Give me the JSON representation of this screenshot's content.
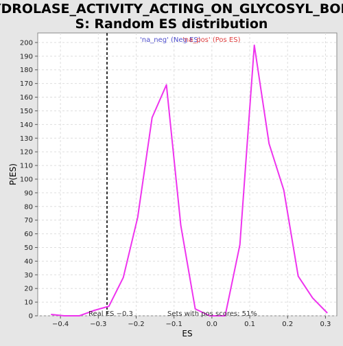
{
  "chart_data": {
    "type": "line",
    "title_lines": [
      "HYDROLASE_ACTIVITY_ACTING_ON_GLYCOSYL_BOND",
      "S: Random ES distribution"
    ],
    "xlabel": "ES",
    "ylabel": "P(ES)",
    "xlim": [
      -0.46,
      0.33
    ],
    "ylim": [
      0,
      207
    ],
    "x_ticks": [
      -0.4,
      -0.3,
      -0.2,
      -0.1,
      0.0,
      0.1,
      0.2,
      0.3
    ],
    "x_tick_labels": [
      "−0.4",
      "−0.3",
      "−0.2",
      "−0.1",
      "0.0",
      "0.1",
      "0.2",
      "0.3"
    ],
    "y_ticks": [
      0,
      10,
      20,
      30,
      40,
      50,
      60,
      70,
      80,
      90,
      100,
      110,
      120,
      130,
      140,
      150,
      160,
      170,
      180,
      190,
      200
    ],
    "grid": true,
    "legend": [
      {
        "label": "'na_neg' (Neg ES)",
        "color": "#4d4dcc"
      },
      {
        "label": "'na_pos' (Pos ES)",
        "color": "#e04040"
      }
    ],
    "series": [
      {
        "color": "#ee33ee",
        "x": [
          -0.425,
          -0.39,
          -0.35,
          -0.31,
          -0.272,
          -0.234,
          -0.196,
          -0.158,
          -0.12,
          -0.082,
          -0.044,
          -0.006,
          0.035,
          0.074,
          0.112,
          0.151,
          0.19,
          0.228,
          0.266,
          0.305
        ],
        "y": [
          1,
          0,
          0,
          4,
          7,
          28,
          72,
          145,
          169,
          66,
          5,
          0,
          0,
          52,
          198,
          126,
          92,
          29,
          13,
          2
        ]
      }
    ],
    "annotations": {
      "real_es_label": "Real ES −0.3",
      "real_es_value": -0.277,
      "pos_scores_label": "Sets with pos scores: 51%"
    }
  }
}
